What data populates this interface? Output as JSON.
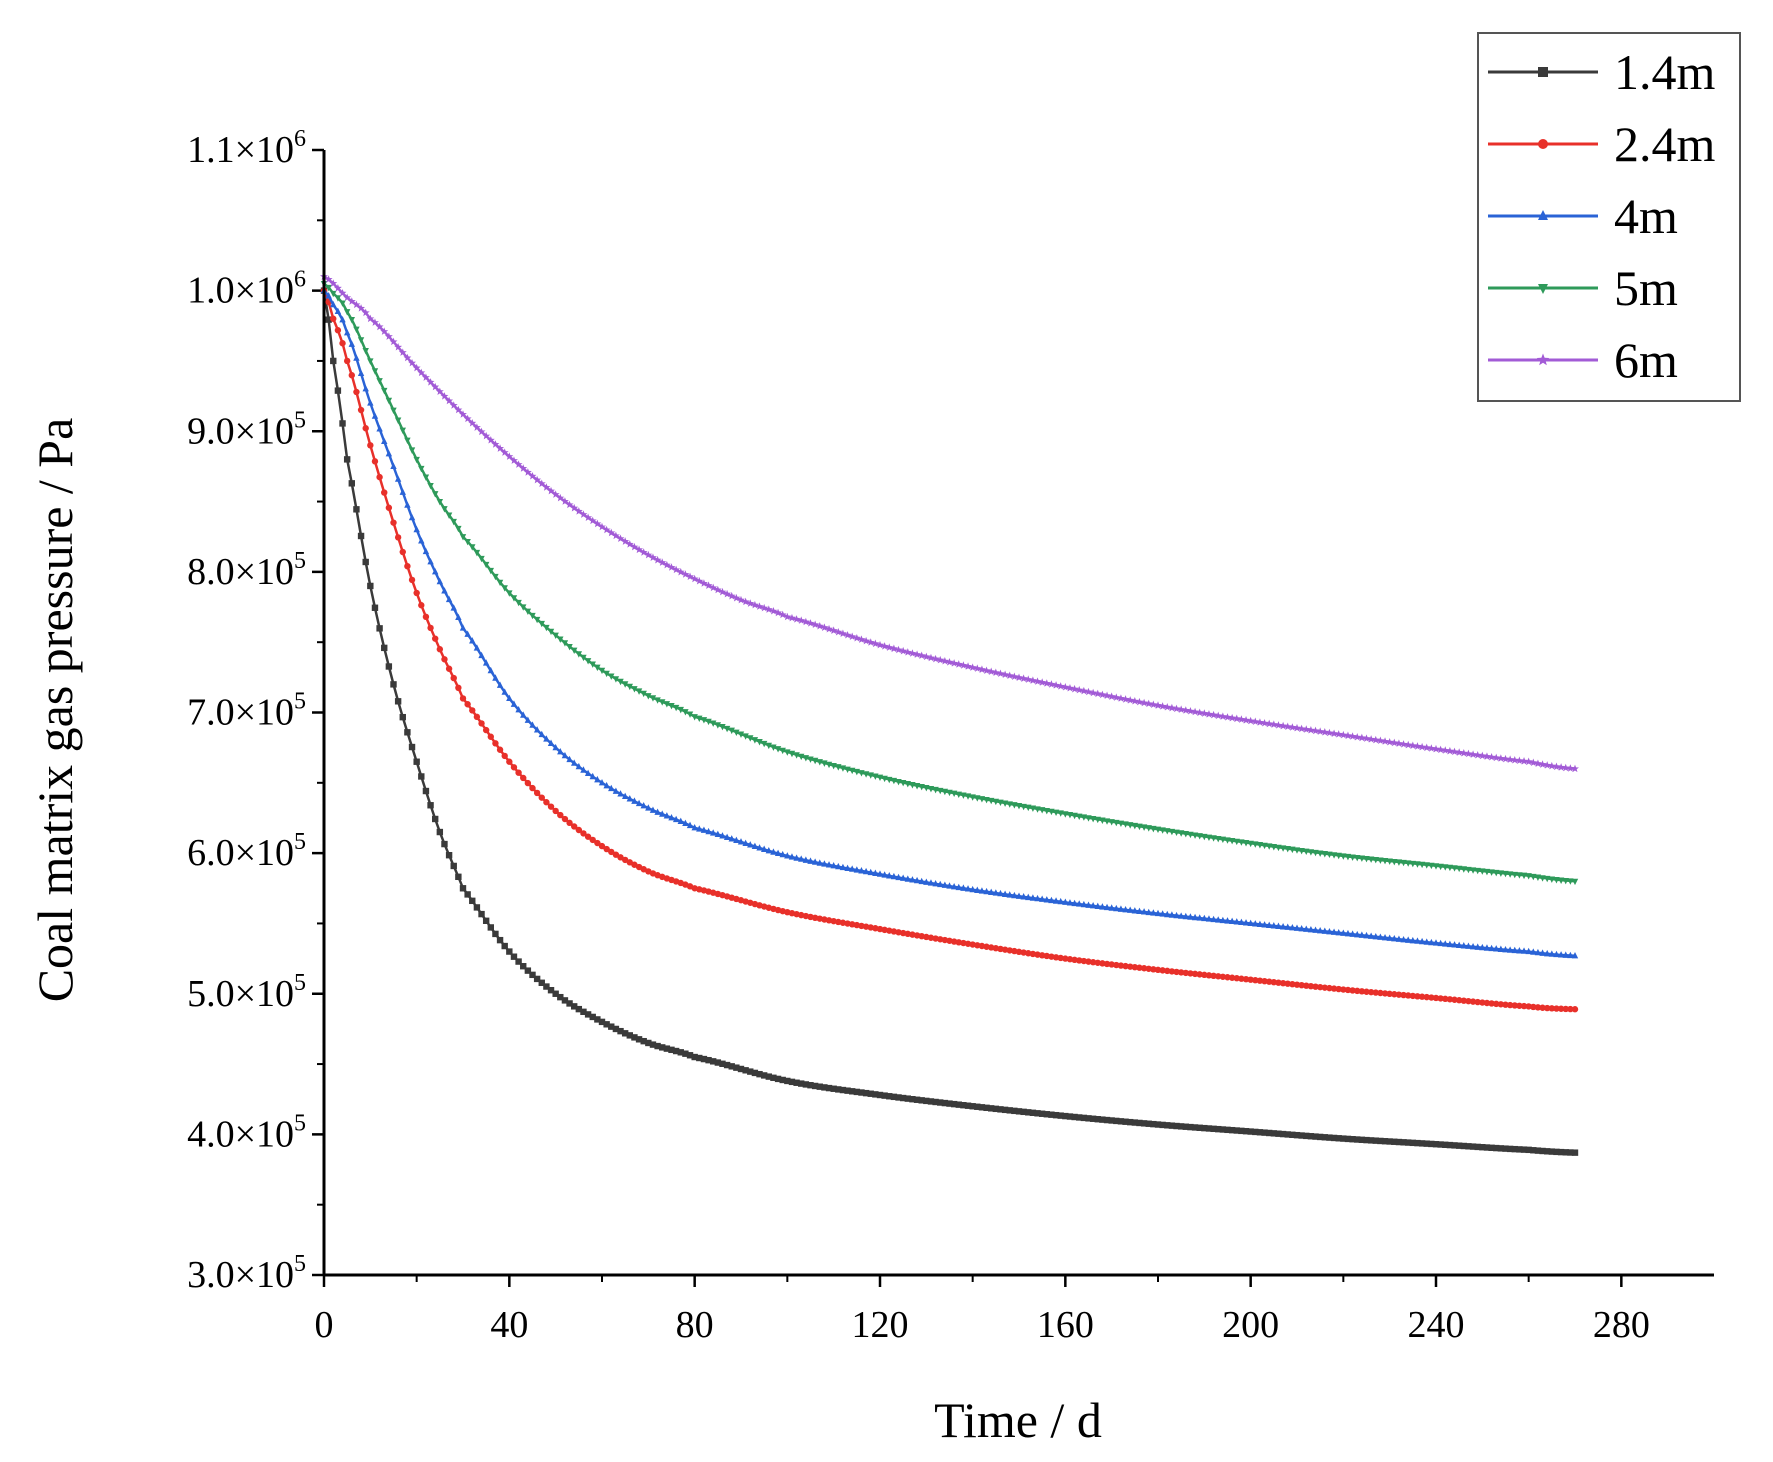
{
  "chart_data": {
    "type": "line",
    "title": "",
    "xlabel": "Time / d",
    "ylabel": "Coal matrix gas pressure / Pa",
    "xlim": [
      0,
      300
    ],
    "ylim": [
      300000,
      1100000
    ],
    "x_ticks": [
      0,
      40,
      80,
      120,
      160,
      200,
      240,
      280
    ],
    "x_tick_labels": [
      "0",
      "40",
      "80",
      "120",
      "160",
      "200",
      "240",
      "280"
    ],
    "y_ticks": [
      300000,
      400000,
      500000,
      600000,
      700000,
      800000,
      900000,
      1000000,
      1100000
    ],
    "y_tick_labels": [
      {
        "mantissa": "3.0×10",
        "exp": "5"
      },
      {
        "mantissa": "4.0×10",
        "exp": "5"
      },
      {
        "mantissa": "5.0×10",
        "exp": "5"
      },
      {
        "mantissa": "6.0×10",
        "exp": "5"
      },
      {
        "mantissa": "7.0×10",
        "exp": "5"
      },
      {
        "mantissa": "8.0×10",
        "exp": "5"
      },
      {
        "mantissa": "9.0×10",
        "exp": "5"
      },
      {
        "mantissa": "1.0×10",
        "exp": "6"
      },
      {
        "mantissa": "1.1×10",
        "exp": "6"
      }
    ],
    "legend_position": "top-right",
    "series": [
      {
        "name": "1.4m",
        "color": "#3a3a3a",
        "marker": "square",
        "x": [
          0,
          2,
          5,
          10,
          15,
          20,
          25,
          30,
          40,
          50,
          60,
          70,
          80,
          100,
          120,
          140,
          160,
          180,
          200,
          220,
          240,
          260,
          270
        ],
        "y": [
          1000000,
          950000,
          880000,
          790000,
          720000,
          665000,
          615000,
          575000,
          530000,
          500000,
          480000,
          465000,
          455000,
          438000,
          428000,
          420000,
          413000,
          407000,
          402000,
          397000,
          393000,
          389000,
          387000
        ]
      },
      {
        "name": "2.4m",
        "color": "#e8302a",
        "marker": "circle",
        "x": [
          0,
          2,
          5,
          10,
          15,
          20,
          25,
          30,
          40,
          50,
          60,
          70,
          80,
          100,
          120,
          140,
          160,
          180,
          200,
          220,
          240,
          260,
          270
        ],
        "y": [
          1000000,
          980000,
          950000,
          890000,
          835000,
          785000,
          745000,
          710000,
          665000,
          630000,
          605000,
          587000,
          575000,
          558000,
          546000,
          535000,
          525000,
          517000,
          510000,
          503000,
          497000,
          491000,
          489000
        ]
      },
      {
        "name": "4m",
        "color": "#2a63d6",
        "marker": "triangle-up",
        "x": [
          0,
          2,
          5,
          10,
          15,
          20,
          25,
          30,
          40,
          50,
          60,
          70,
          80,
          100,
          120,
          140,
          160,
          180,
          200,
          220,
          240,
          260,
          270
        ],
        "y": [
          1000000,
          990000,
          970000,
          920000,
          875000,
          830000,
          793000,
          760000,
          710000,
          675000,
          650000,
          632000,
          618000,
          598000,
          585000,
          574000,
          565000,
          557000,
          550000,
          543000,
          536000,
          530000,
          527000
        ]
      },
      {
        "name": "5m",
        "color": "#2e9a5a",
        "marker": "triangle-down",
        "x": [
          0,
          2,
          5,
          10,
          15,
          20,
          25,
          30,
          40,
          50,
          60,
          70,
          80,
          100,
          120,
          140,
          160,
          180,
          200,
          220,
          240,
          260,
          270
        ],
        "y": [
          1005000,
          998000,
          985000,
          950000,
          915000,
          880000,
          850000,
          825000,
          785000,
          755000,
          730000,
          712000,
          697000,
          672000,
          654000,
          640000,
          628000,
          617000,
          607000,
          598000,
          591000,
          584000,
          580000
        ]
      },
      {
        "name": "6m",
        "color": "#a25bd6",
        "marker": "star",
        "x": [
          0,
          5,
          10,
          20,
          30,
          40,
          50,
          60,
          70,
          80,
          90,
          100,
          120,
          140,
          160,
          180,
          200,
          220,
          240,
          260,
          270
        ],
        "y": [
          1010000,
          995000,
          980000,
          945000,
          912000,
          882000,
          855000,
          832000,
          812000,
          795000,
          780000,
          768000,
          748000,
          732000,
          718000,
          705000,
          694000,
          684000,
          674000,
          665000,
          660000
        ]
      }
    ]
  }
}
